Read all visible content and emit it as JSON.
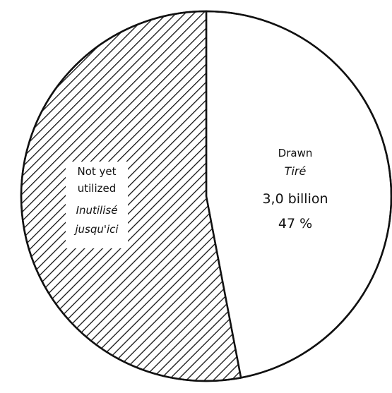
{
  "chart_data": {
    "type": "pie",
    "slices": [
      {
        "label_en": "Drawn",
        "label_fr": "Tiré",
        "amount": "3,0 billion",
        "percent_text": "47 %",
        "value": 47,
        "fill": "#ffffff"
      },
      {
        "label_en_1": "Not yet",
        "label_en_2": "utilized",
        "label_fr_1": "Inutilisé",
        "label_fr_2": "jusqu'ici",
        "value": 53,
        "fill": "hatched"
      }
    ]
  },
  "colors": {
    "stroke": "#111111",
    "hatch": "#111111",
    "background": "#ffffff"
  }
}
